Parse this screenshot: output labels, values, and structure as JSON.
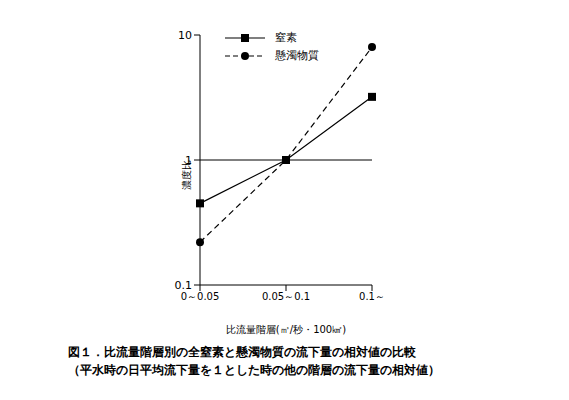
{
  "chart_data": {
    "type": "line",
    "title": "図１．比流量階層別の全窒素と懸濁物質の流下量の相対値の比較",
    "subtitle": "（平水時の日平均流下量を１とした時の他の階層の流下量の相対値）",
    "x_label": "比流量階層(㎥/秒・100㎢)",
    "y_label": "濃度比",
    "categories": [
      "0～0.05",
      "0.05～0.1",
      "0.1～"
    ],
    "series": [
      {
        "name": "窒素",
        "color": "#000000",
        "marker": "square",
        "line_style": "solid",
        "values": [
          0.45,
          1,
          3.2
        ]
      },
      {
        "name": "懸濁物質",
        "color": "#000000",
        "marker": "circle",
        "line_style": "dashed",
        "values": [
          0.22,
          1,
          8
        ]
      }
    ],
    "ylim": [
      0.1,
      10
    ],
    "yticks": [
      0.1,
      1,
      10
    ],
    "log": "y",
    "grid": false
  }
}
